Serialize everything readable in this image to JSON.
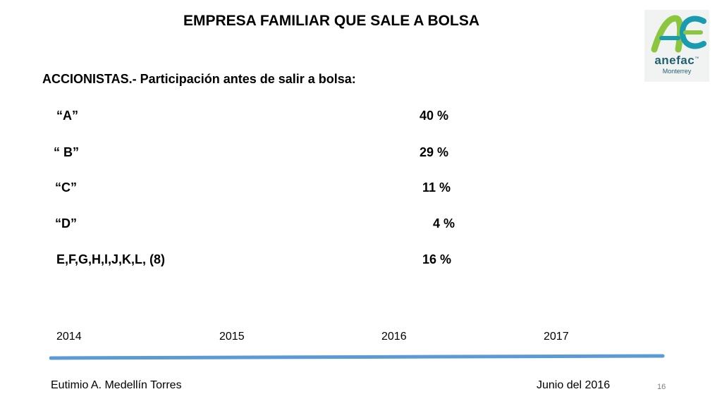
{
  "title": "EMPRESA FAMILIAR QUE SALE A BOLSA",
  "logo": {
    "name": "anefac",
    "tm": "™",
    "city": "Monterrey",
    "colors": {
      "primary": "#1f5f6f",
      "accent": "#8cc63f",
      "teal": "#1a9cb0"
    }
  },
  "subtitle": "ACCIONISTAS.- Participación antes de salir a bolsa:",
  "shareholders": [
    {
      "name": "“A”",
      "pct": "40  %"
    },
    {
      "name": "“ B”",
      "pct": "29  %"
    },
    {
      "name": "“C”",
      "pct": "11  %"
    },
    {
      "name": "“D”",
      "pct": "4  %"
    },
    {
      "name": "E,F,G,H,I,J,K,L, (8)",
      "pct": "16  %"
    }
  ],
  "timeline": {
    "years": [
      "2014",
      "2015",
      "2016",
      "2017"
    ],
    "color": "#5b9bd5"
  },
  "footer": {
    "author": "Eutimio A. Medellín Torres",
    "date": "Junio del 2016",
    "page": "16"
  }
}
